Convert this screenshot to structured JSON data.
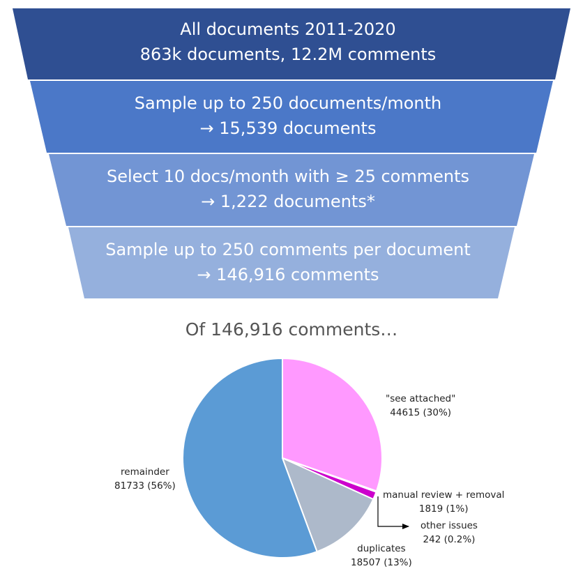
{
  "funnel": {
    "stages": [
      {
        "line1": "All documents 2011-2020",
        "line2": "863k documents, 12.2M comments",
        "color": "#2f4f92"
      },
      {
        "line1": "Sample up to 250 documents/month",
        "line2": "→ 15,539 documents",
        "color": "#4b78c8"
      },
      {
        "line1": "Select 10 docs/month with ≥ 25 comments",
        "line2": "→ 1,222 documents*",
        "color": "#7295d4"
      },
      {
        "line1": "Sample up to 250 comments per document",
        "line2": "→ 146,916 comments",
        "color": "#95b0dd"
      }
    ]
  },
  "pie": {
    "title": "Of 146,916 comments…"
  },
  "chart_data": {
    "type": "pie",
    "title": "Of 146,916 comments…",
    "slices": [
      {
        "name": "\"see attached\"",
        "value": 44615,
        "pct_label": "44615 (30%)",
        "color": "#ff99ff"
      },
      {
        "name": "other issues",
        "value": 242,
        "pct_label": "242 (0.2%)",
        "color": "#e8d8f0"
      },
      {
        "name": "manual review + removal",
        "value": 1819,
        "pct_label": "1819 (1%)",
        "color": "#cc00cc"
      },
      {
        "name": "duplicates",
        "value": 18507,
        "pct_label": "18507 (13%)",
        "color": "#adb9ca"
      },
      {
        "name": "remainder",
        "value": 81733,
        "pct_label": "81733 (56%)",
        "color": "#5b9bd5"
      }
    ]
  }
}
